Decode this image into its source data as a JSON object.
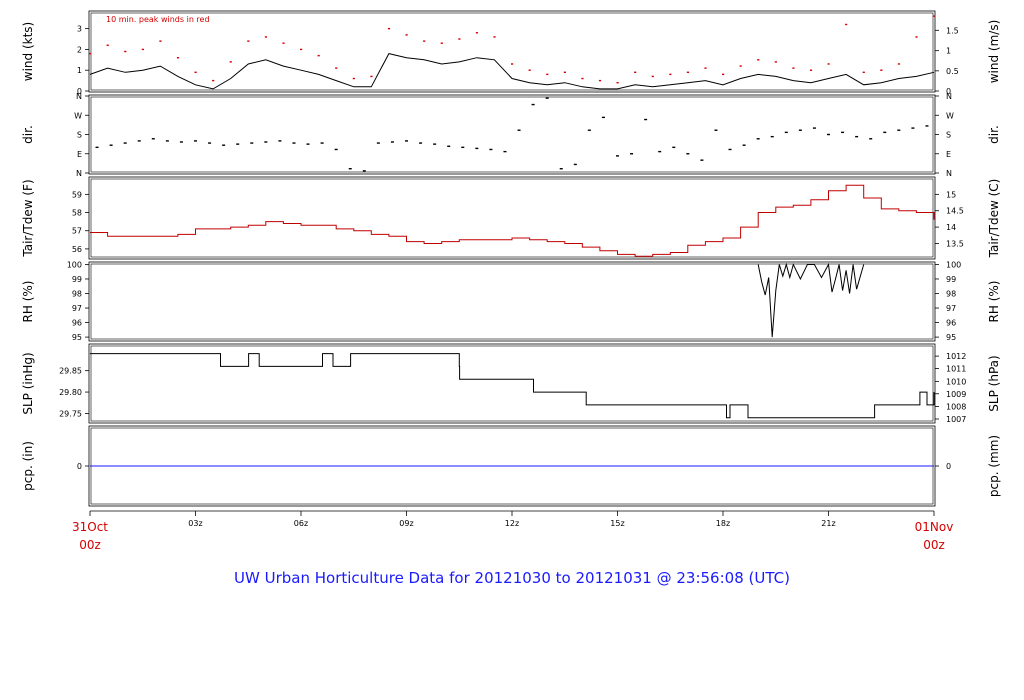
{
  "title": "UW Urban Horticulture Data for 20121030  to  20121031 @ 23:56:08  (UTC)",
  "x_axis": {
    "start_label_line1": "31Oct",
    "start_label_line2": "00z",
    "end_label_line1": "01Nov",
    "end_label_line2": "00z",
    "ticks": [
      "03z",
      "06z",
      "09z",
      "12z",
      "15z",
      "18z",
      "21z"
    ],
    "hours": [
      3,
      6,
      9,
      12,
      15,
      18,
      21
    ],
    "range": [
      0,
      24
    ]
  },
  "colors": {
    "red": "#d40000",
    "blue": "#1a1aff",
    "black": "#000000"
  },
  "chart_data": [
    {
      "name": "wind",
      "type": "line",
      "ylabel": "wind (kts)",
      "ylabel_right": "wind (m/s)",
      "ylim": [
        0,
        3.8
      ],
      "yticks": [
        0,
        1,
        2,
        3
      ],
      "yticks_right_values": [
        0,
        0.97,
        1.94,
        2.92,
        3.89
      ],
      "yticks_right": [
        "0",
        "0.5",
        "1",
        "1.5"
      ],
      "right_tick_kts": [
        0,
        0.97,
        1.94,
        2.92
      ],
      "annotation": "10 min. peak winds in red",
      "x": [
        0,
        0.5,
        1,
        1.5,
        2,
        2.5,
        3,
        3.5,
        4,
        4.5,
        5,
        5.5,
        6,
        6.5,
        7,
        7.5,
        8,
        8.5,
        9,
        9.5,
        10,
        10.5,
        11,
        11.5,
        12,
        12.5,
        13,
        13.5,
        14,
        14.5,
        15,
        15.5,
        16,
        16.5,
        17,
        17.5,
        18,
        18.5,
        19,
        19.5,
        20,
        20.5,
        21,
        21.5,
        22,
        22.5,
        23,
        23.5,
        24
      ],
      "values": [
        0.8,
        1.1,
        0.9,
        1.0,
        1.2,
        0.7,
        0.3,
        0.1,
        0.6,
        1.3,
        1.5,
        1.2,
        1.0,
        0.8,
        0.5,
        0.2,
        0.2,
        1.8,
        1.6,
        1.5,
        1.3,
        1.4,
        1.6,
        1.5,
        0.6,
        0.4,
        0.3,
        0.4,
        0.2,
        0.1,
        0.1,
        0.3,
        0.2,
        0.3,
        0.4,
        0.5,
        0.3,
        0.6,
        0.8,
        0.7,
        0.5,
        0.4,
        0.6,
        0.8,
        0.3,
        0.4,
        0.6,
        0.7,
        0.9
      ],
      "peak_values": [
        1.8,
        2.2,
        1.9,
        2.0,
        2.4,
        1.6,
        0.9,
        0.5,
        1.4,
        2.4,
        2.6,
        2.3,
        2.0,
        1.7,
        1.1,
        0.6,
        0.7,
        3.0,
        2.7,
        2.4,
        2.3,
        2.5,
        2.8,
        2.6,
        1.3,
        1.0,
        0.8,
        0.9,
        0.6,
        0.5,
        0.4,
        0.9,
        0.7,
        0.8,
        0.9,
        1.1,
        0.8,
        1.2,
        1.5,
        1.4,
        1.1,
        1.0,
        1.3,
        3.2,
        0.9,
        1.0,
        1.3,
        2.6,
        3.6
      ]
    },
    {
      "name": "dir",
      "type": "scatter",
      "ylabel": "dir.",
      "ylabel_right": "dir.",
      "ylim": [
        0,
        360
      ],
      "yticks": [
        0,
        90,
        180,
        270,
        360
      ],
      "ytick_labels": [
        "N",
        "E",
        "S",
        "W",
        "N"
      ],
      "x": [
        0.2,
        0.6,
        1.0,
        1.4,
        1.8,
        2.2,
        2.6,
        3.0,
        3.4,
        3.8,
        4.2,
        4.6,
        5.0,
        5.4,
        5.8,
        6.2,
        6.6,
        7.0,
        7.4,
        7.8,
        8.2,
        8.6,
        9.0,
        9.4,
        9.8,
        10.2,
        10.6,
        11.0,
        11.4,
        11.8,
        12.2,
        12.6,
        13.0,
        13.4,
        13.8,
        14.2,
        14.6,
        15.0,
        15.4,
        15.8,
        16.2,
        16.6,
        17.0,
        17.4,
        17.8,
        18.2,
        18.6,
        19.0,
        19.4,
        19.8,
        20.2,
        20.6,
        21.0,
        21.4,
        21.8,
        22.2,
        22.6,
        23.0,
        23.4,
        23.8
      ],
      "values": [
        120,
        130,
        140,
        150,
        160,
        150,
        145,
        150,
        140,
        130,
        135,
        140,
        145,
        150,
        140,
        135,
        140,
        110,
        20,
        10,
        140,
        145,
        150,
        140,
        135,
        125,
        120,
        115,
        110,
        100,
        200,
        320,
        350,
        20,
        40,
        200,
        260,
        80,
        90,
        250,
        100,
        120,
        90,
        60,
        200,
        110,
        130,
        160,
        170,
        190,
        200,
        210,
        180,
        190,
        170,
        160,
        190,
        200,
        210,
        220
      ]
    },
    {
      "name": "temp",
      "type": "line",
      "ylabel": "Tair/Tdew (F)",
      "ylabel_right": "Tair/Tdew (C)",
      "ylim": [
        55.5,
        59.9
      ],
      "yticks": [
        56,
        57,
        58,
        59
      ],
      "yticks_right_f": [
        56.3,
        57.2,
        58.1,
        59.0
      ],
      "yticks_right": [
        "13.5",
        "14",
        "14.5",
        "15"
      ],
      "x": [
        0,
        0.5,
        1,
        1.5,
        2,
        2.5,
        3,
        3.5,
        4,
        4.5,
        5,
        5.5,
        6,
        6.5,
        7,
        7.5,
        8,
        8.5,
        9,
        9.5,
        10,
        10.5,
        11,
        11.5,
        12,
        12.5,
        13,
        13.5,
        14,
        14.5,
        15,
        15.5,
        16,
        16.5,
        17,
        17.5,
        18,
        18.5,
        19,
        19.5,
        20,
        20.5,
        21,
        21.5,
        22,
        22.5,
        23,
        23.5,
        24
      ],
      "values": [
        56.9,
        56.7,
        56.7,
        56.7,
        56.7,
        56.8,
        57.1,
        57.1,
        57.2,
        57.3,
        57.5,
        57.4,
        57.3,
        57.3,
        57.1,
        57.0,
        56.8,
        56.7,
        56.4,
        56.3,
        56.4,
        56.5,
        56.5,
        56.5,
        56.6,
        56.5,
        56.4,
        56.3,
        56.1,
        55.9,
        55.7,
        55.6,
        55.7,
        55.8,
        56.2,
        56.4,
        56.6,
        57.2,
        58.0,
        58.3,
        58.4,
        58.7,
        59.2,
        59.5,
        58.8,
        58.2,
        58.1,
        58.0,
        57.6
      ],
      "series_color": "#c00000"
    },
    {
      "name": "rh",
      "type": "line",
      "ylabel": "RH (%)",
      "ylabel_right": "RH (%)",
      "ylim": [
        94.8,
        100.1
      ],
      "yticks": [
        95,
        96,
        97,
        98,
        99,
        100
      ],
      "yticks_right": [
        "95",
        "96",
        "97",
        "98",
        "99",
        "100"
      ],
      "x": [
        19.0,
        19.1,
        19.2,
        19.3,
        19.4,
        19.5,
        19.6,
        19.7,
        19.8,
        19.9,
        20.0,
        20.2,
        20.4,
        20.6,
        20.8,
        21.0,
        21.1,
        21.2,
        21.3,
        21.4,
        21.5,
        21.6,
        21.7,
        21.8,
        22.0
      ],
      "values": [
        100,
        98.8,
        97.9,
        99.1,
        95.0,
        98.2,
        100,
        99.2,
        100,
        99.1,
        100,
        99.0,
        100,
        100,
        99.1,
        100,
        98.1,
        99.0,
        100,
        98.2,
        99.6,
        98.0,
        100,
        98.3,
        100
      ]
    },
    {
      "name": "slp",
      "type": "line",
      "ylabel": "SLP (inHg)",
      "ylabel_right": "SLP (hPa)",
      "ylim": [
        29.73,
        29.91
      ],
      "yticks": [
        29.75,
        29.8,
        29.85
      ],
      "yticks_right_inhg": [
        29.737,
        29.766,
        29.796,
        29.825,
        29.855,
        29.884
      ],
      "yticks_right": [
        "1007",
        "1008",
        "1009",
        "1010",
        "1011",
        "1012"
      ],
      "x": [
        0,
        3.7,
        3.71,
        4.5,
        4.51,
        4.8,
        4.81,
        6.6,
        6.61,
        6.9,
        6.91,
        7.4,
        7.41,
        10.5,
        10.51,
        12.6,
        12.61,
        14.1,
        14.11,
        18.0,
        18.1,
        18.2,
        18.3,
        18.7,
        18.71,
        22.3,
        22.31,
        23.5,
        23.6,
        23.8,
        24.0
      ],
      "values": [
        29.89,
        29.89,
        29.86,
        29.86,
        29.89,
        29.89,
        29.86,
        29.86,
        29.89,
        29.89,
        29.86,
        29.86,
        29.89,
        29.86,
        29.83,
        29.83,
        29.8,
        29.8,
        29.77,
        29.77,
        29.74,
        29.77,
        29.77,
        29.77,
        29.74,
        29.74,
        29.77,
        29.77,
        29.8,
        29.77,
        29.8
      ]
    },
    {
      "name": "precip",
      "type": "line",
      "ylabel": "pcp. (in)",
      "ylabel_right": "pcp. (mm)",
      "ylim": [
        -1,
        1
      ],
      "yticks": [
        0
      ],
      "ytick_labels": [
        "0"
      ],
      "yticks_right": [
        "0"
      ],
      "x": [
        0,
        24
      ],
      "values": [
        0,
        0
      ]
    }
  ]
}
